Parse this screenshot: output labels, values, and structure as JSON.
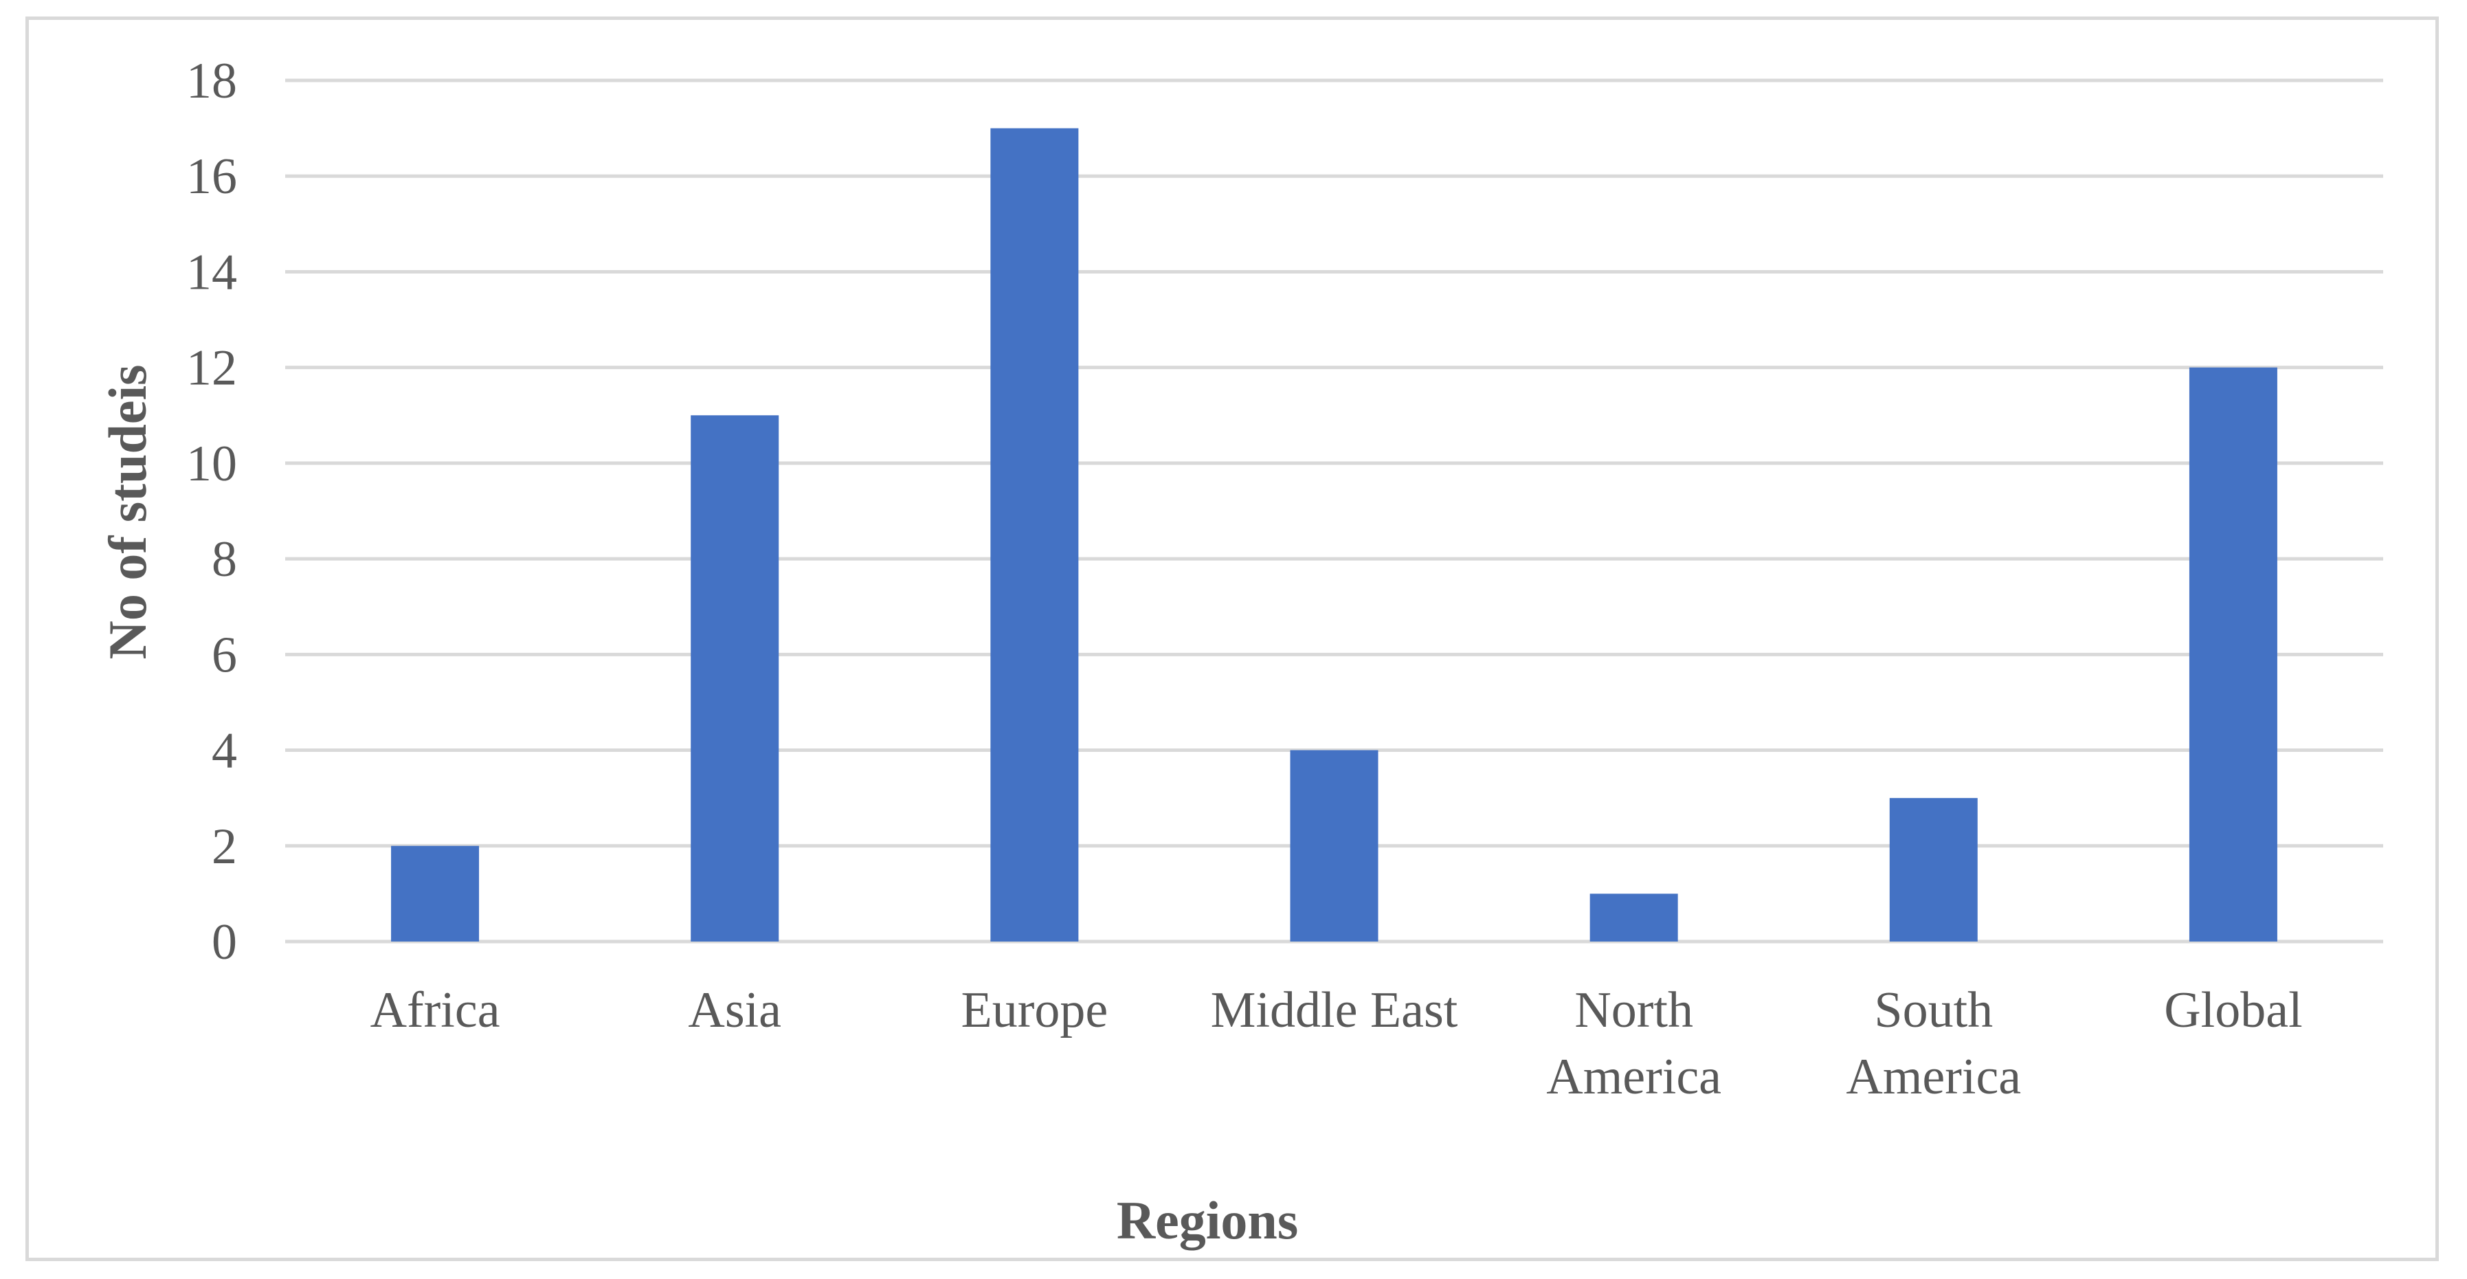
{
  "chart_data": {
    "type": "bar",
    "title": "",
    "xlabel": "Regions",
    "ylabel": "No of studeis",
    "categories": [
      "Africa",
      "Asia",
      "Europe",
      "Middle East",
      "North America",
      "South America",
      "Global"
    ],
    "category_lines": [
      [
        "Africa"
      ],
      [
        "Asia"
      ],
      [
        "Europe"
      ],
      [
        "Middle East"
      ],
      [
        "North",
        "America"
      ],
      [
        "South",
        "America"
      ],
      [
        "Global"
      ]
    ],
    "values": [
      2,
      11,
      17,
      4,
      1,
      3,
      12
    ],
    "ylim": [
      0,
      18
    ],
    "yticks": [
      0,
      2,
      4,
      6,
      8,
      10,
      12,
      14,
      16,
      18
    ],
    "grid": true,
    "legend": "none",
    "bar_color": "#4472c4",
    "grid_color": "#d9d9d9",
    "text_color": "#595959"
  }
}
